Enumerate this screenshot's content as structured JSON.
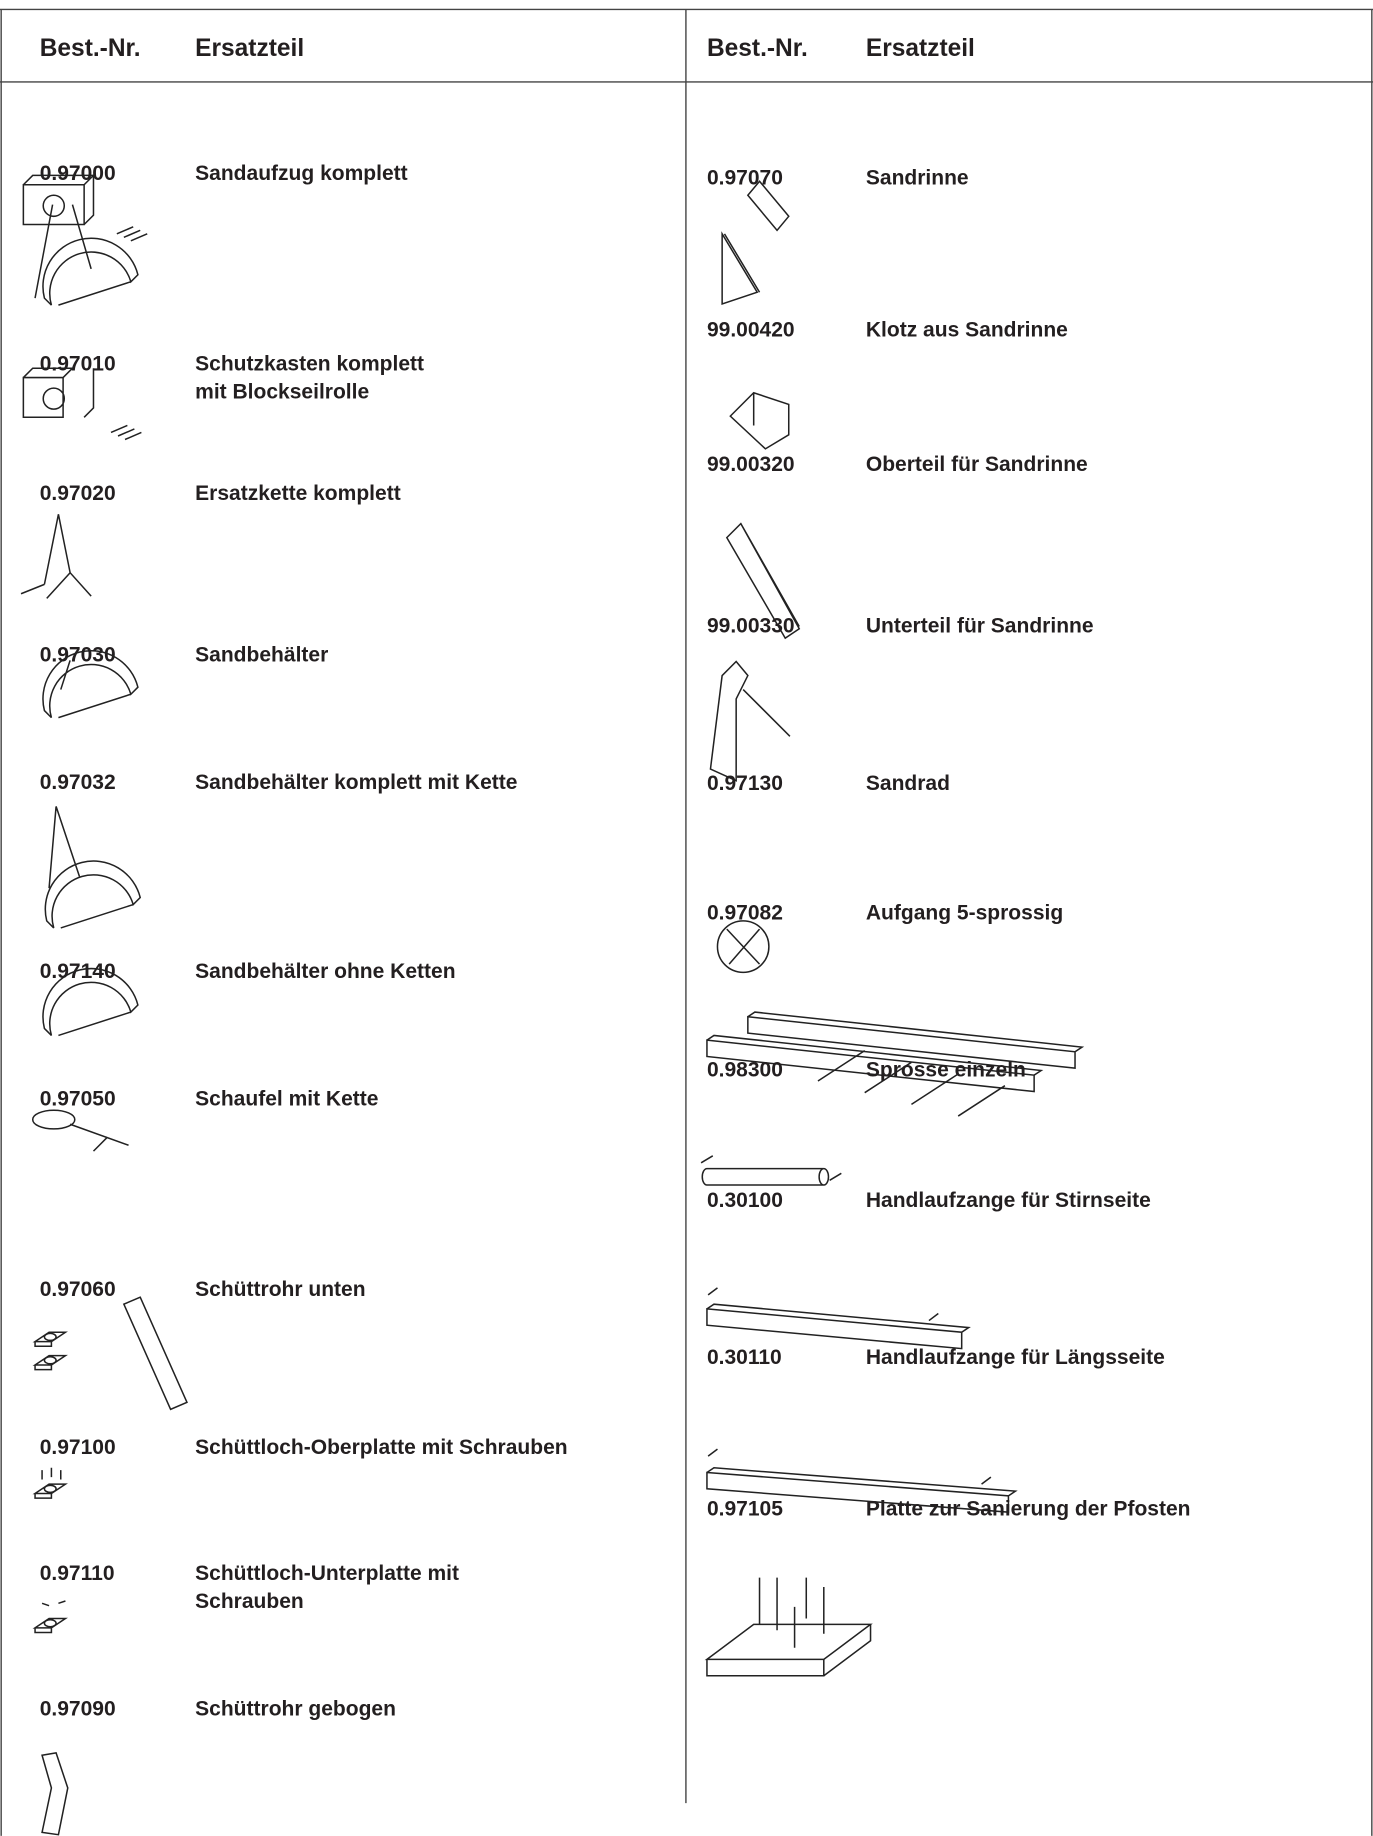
{
  "header": {
    "left": {
      "number_label": "Best.-Nr.",
      "part_label": "Ersatzteil"
    },
    "right": {
      "number_label": "Best.-Nr.",
      "part_label": "Ersatzteil"
    }
  },
  "left": [
    {
      "number": "0.97000",
      "name": [
        "Sandaufzug komplett"
      ]
    },
    {
      "number": "0.97010",
      "name": [
        "Schutzkasten komplett",
        "mit Blockseilrolle"
      ]
    },
    {
      "number": "0.97020",
      "name": [
        "Ersatzkette komplett"
      ]
    },
    {
      "number": "0.97030",
      "name": [
        "Sandbehälter"
      ]
    },
    {
      "number": "0.97032",
      "name": [
        "Sandbehälter komplett mit Kette"
      ]
    },
    {
      "number": "0.97140",
      "name": [
        "Sandbehälter ohne Ketten"
      ]
    },
    {
      "number": "0.97050",
      "name": [
        "Schaufel mit Kette"
      ]
    },
    {
      "number": "0.97060",
      "name": [
        "Schüttrohr unten"
      ]
    },
    {
      "number": "0.97100",
      "name": [
        "Schüttloch-Oberplatte mit Schrauben"
      ]
    },
    {
      "number": "0.97110",
      "name": [
        "Schüttloch-Unterplatte mit",
        "Schrauben"
      ]
    },
    {
      "number": "0.97090",
      "name": [
        "Schüttrohr gebogen"
      ]
    }
  ],
  "right": [
    {
      "number": "0.97070",
      "name": [
        "Sandrinne"
      ]
    },
    {
      "number": "99.00420",
      "name": [
        "Klotz aus Sandrinne"
      ]
    },
    {
      "number": "99.00320",
      "name": [
        "Oberteil für Sandrinne"
      ]
    },
    {
      "number": "99.00330",
      "name": [
        "Unterteil für Sandrinne"
      ]
    },
    {
      "number": "0.97130",
      "name": [
        "Sandrad"
      ]
    },
    {
      "number": "0.97082",
      "name": [
        "Aufgang 5-sprossig"
      ]
    },
    {
      "number": "0.98300",
      "name": [
        "Sprosse einzeln"
      ]
    },
    {
      "number": "0.30100",
      "name": [
        "Handlaufzange für Stirnseite"
      ]
    },
    {
      "number": "0.30110",
      "name": [
        "Handlaufzange für Längsseite"
      ]
    },
    {
      "number": "0.97105",
      "name": [
        "Platte zur Sanierung der Pfosten"
      ]
    }
  ]
}
